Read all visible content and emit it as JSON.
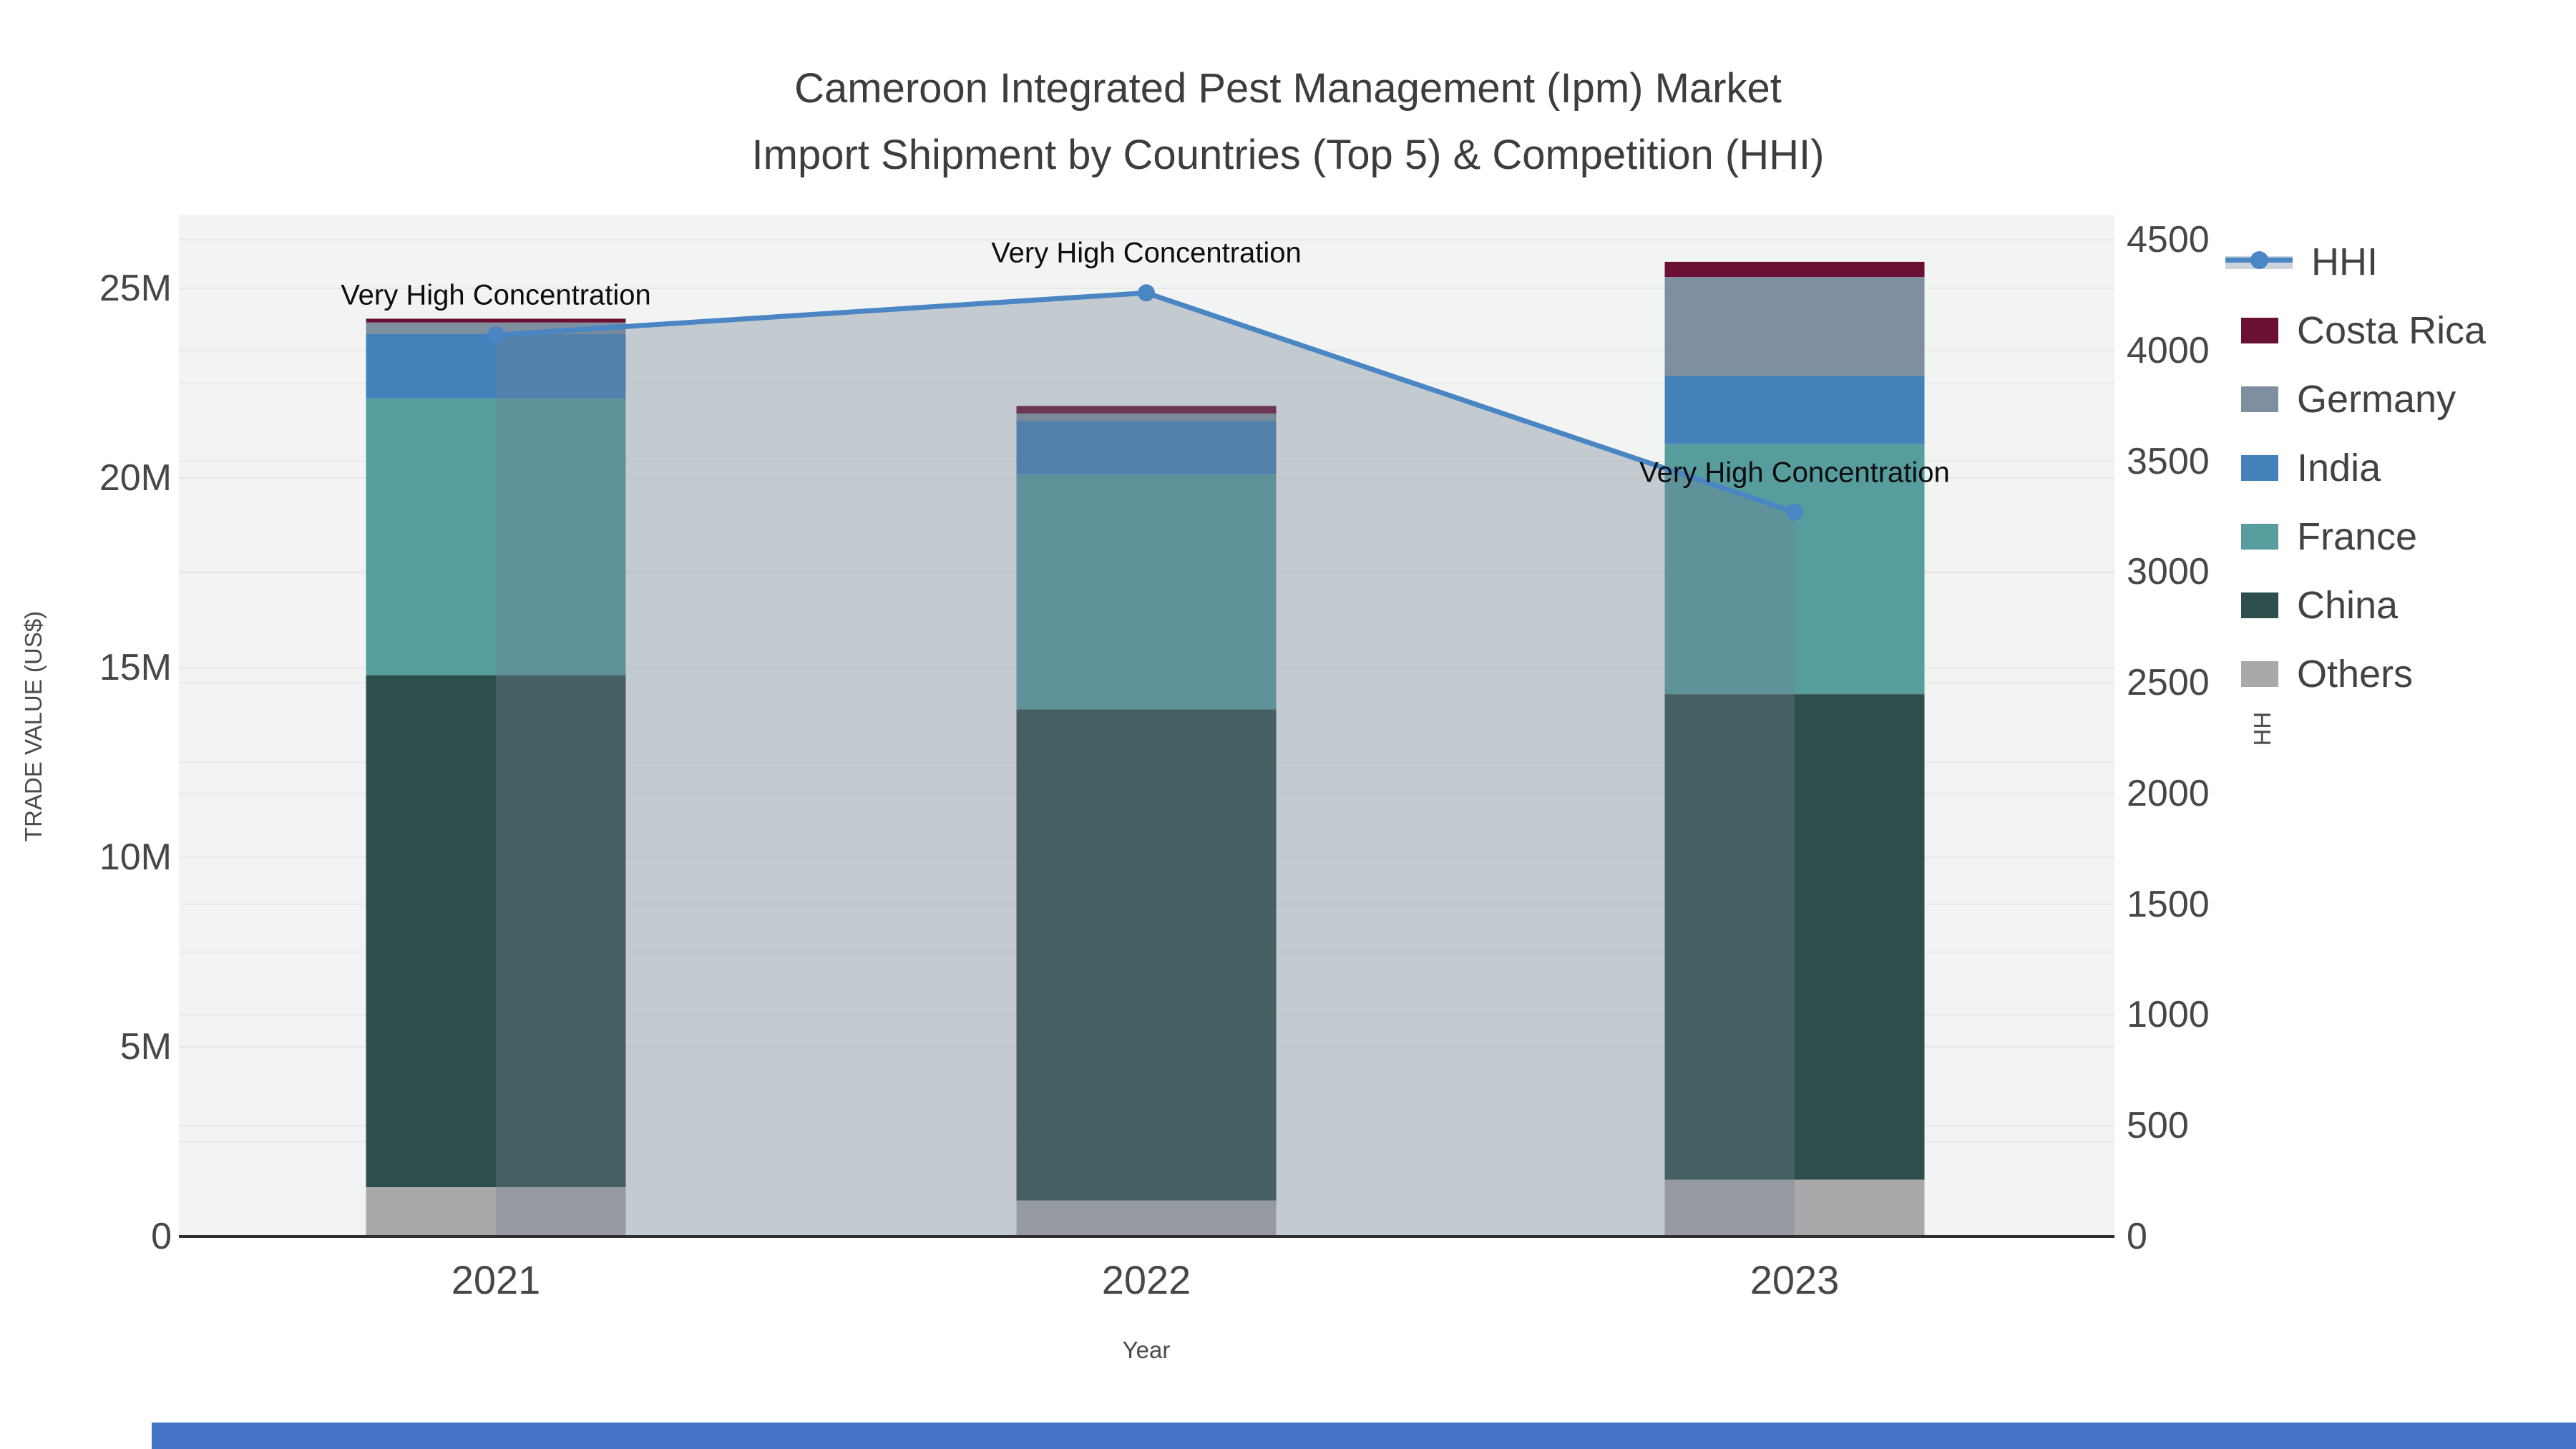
{
  "title": {
    "line1": "Cameroon Integrated Pest Management (Ipm) Market",
    "line2": "Import Shipment by Countries (Top 5) & Competition (HHI)"
  },
  "axes": {
    "x": {
      "title": "Year",
      "ticks": [
        "2021",
        "2022",
        "2023"
      ]
    },
    "y_left": {
      "title": "TRADE VALUE (US$)",
      "ticks": [
        "0",
        "5M",
        "10M",
        "15M",
        "20M",
        "25M"
      ],
      "max_label": "25M"
    },
    "y_right": {
      "title": "HHI",
      "ticks": [
        "0",
        "500",
        "1000",
        "1500",
        "2000",
        "2500",
        "3000",
        "3500",
        "4000",
        "4500"
      ]
    }
  },
  "legend": {
    "items": [
      {
        "label": "HHI",
        "type": "line"
      },
      {
        "label": "Costa Rica",
        "type": "swatch",
        "color": "#6B1035"
      },
      {
        "label": "Germany",
        "type": "swatch",
        "color": "#7E8FA0"
      },
      {
        "label": "India",
        "type": "swatch",
        "color": "#4481BA"
      },
      {
        "label": "France",
        "type": "swatch",
        "color": "#579D9E"
      },
      {
        "label": "China",
        "type": "swatch",
        "color": "#2E4E4C"
      },
      {
        "label": "Others",
        "type": "swatch",
        "color": "#A9A9A9"
      }
    ]
  },
  "annotations": [
    {
      "text": "Very High Concentration",
      "year_index": 0
    },
    {
      "text": "Very High Concentration",
      "year_index": 1
    },
    {
      "text": "Very High Concentration",
      "year_index": 2
    }
  ],
  "colors": {
    "plot_bg": "#F2F3F3",
    "gridline": "#E8E8E8",
    "axis_line": "#2f2f2f",
    "hhi_line": "#4A86C4",
    "hhi_fill": "rgba(112,128,144,0.35)",
    "legend_band": "#CBD3DC",
    "bottom_bar": "#4472C4"
  },
  "chart_data": {
    "type": "bar+line",
    "categories": [
      "2021",
      "2022",
      "2023"
    ],
    "bar_unit": "US$ (millions)",
    "stack_order_bottom_to_top": [
      "Others",
      "China",
      "France",
      "India",
      "Germany",
      "Costa Rica"
    ],
    "series": [
      {
        "name": "Others",
        "color": "#A9A9A9",
        "values": [
          1300000,
          950000,
          1500000
        ]
      },
      {
        "name": "China",
        "color": "#2E4E4C",
        "values": [
          13500000,
          12950000,
          12800000
        ]
      },
      {
        "name": "France",
        "color": "#579D9E",
        "values": [
          7300000,
          6200000,
          6600000
        ]
      },
      {
        "name": "India",
        "color": "#4481BA",
        "values": [
          1700000,
          1400000,
          1800000
        ]
      },
      {
        "name": "Germany",
        "color": "#7E8FA0",
        "values": [
          300000,
          200000,
          2600000
        ]
      },
      {
        "name": "Costa Rica",
        "color": "#6B1035",
        "values": [
          100000,
          200000,
          400000
        ]
      }
    ],
    "bar_totals": [
      24200000,
      21900000,
      25700000
    ],
    "line_series": {
      "name": "HHI",
      "values": [
        4070,
        4260,
        3270
      ]
    },
    "y_left_axis": {
      "label": "TRADE VALUE (US$)",
      "range": [
        0,
        25000000
      ],
      "tick_step": 5000000
    },
    "y_right_axis": {
      "label": "HHI",
      "range": [
        0,
        4500
      ],
      "tick_step": 500
    },
    "x_label": "Year",
    "title": "Cameroon Integrated Pest Management (Ipm) Market Import Shipment by Countries (Top 5) & Competition (HHI)",
    "legend_position": "right",
    "grid": true
  }
}
